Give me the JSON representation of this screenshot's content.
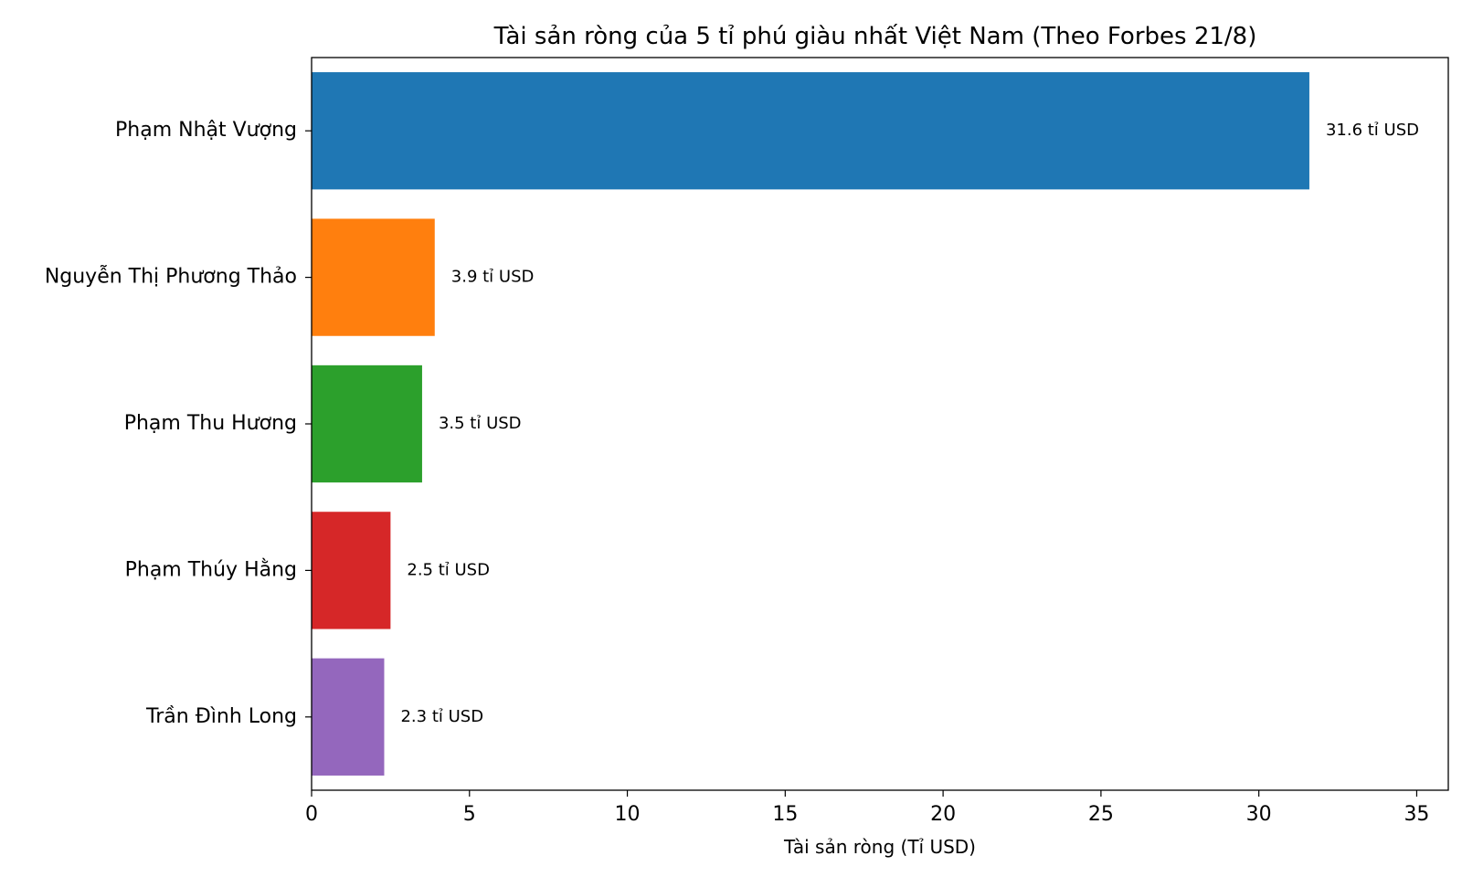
{
  "chart_data": {
    "type": "bar",
    "orientation": "horizontal",
    "title": "Tài sản ròng của 5 tỉ phú giàu nhất Việt Nam (Theo Forbes 21/8)",
    "xlabel": "Tài sản ròng (Tỉ USD)",
    "ylabel": "",
    "xlim": [
      0,
      36
    ],
    "xticks": [
      0,
      5,
      10,
      15,
      20,
      25,
      30,
      35
    ],
    "categories": [
      "Phạm Nhật Vượng",
      "Nguyễn Thị Phương Thảo",
      "Phạm Thu Hương",
      "Phạm Thúy Hằng",
      "Trần Đình Long"
    ],
    "values": [
      31.6,
      3.9,
      3.5,
      2.5,
      2.3
    ],
    "data_labels": [
      "31.6 tỉ USD",
      "3.9 tỉ USD",
      "3.5 tỉ USD",
      "2.5 tỉ USD",
      "2.3 tỉ USD"
    ],
    "colors": [
      "#1f77b4",
      "#ff7f0e",
      "#2ca02c",
      "#d62728",
      "#9467bd"
    ],
    "grid": false,
    "legend": "none"
  }
}
